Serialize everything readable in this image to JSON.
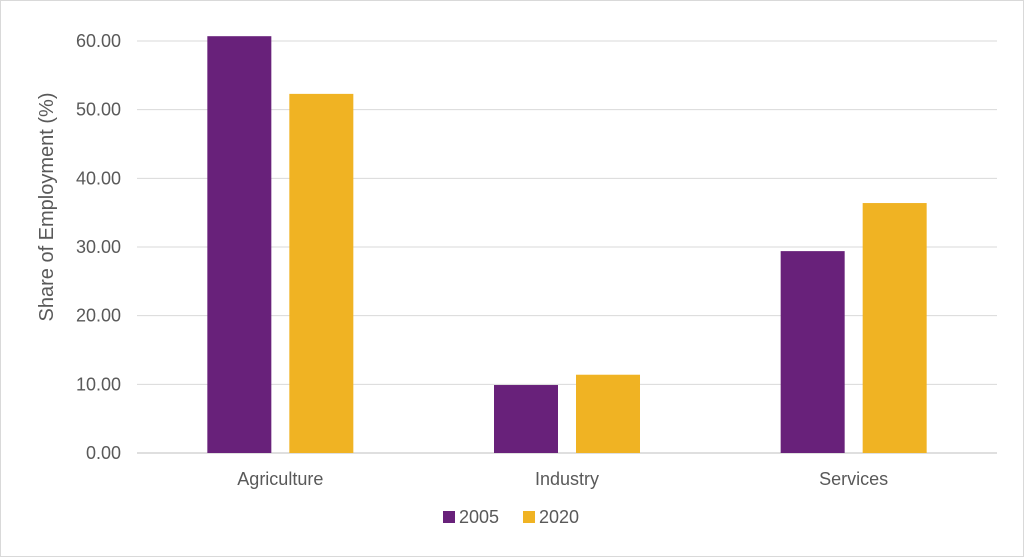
{
  "chart_data": {
    "type": "bar",
    "title": "",
    "xlabel": "",
    "ylabel": "Share of Employment (%)",
    "categories": [
      "Agriculture",
      "Industry",
      "Services"
    ],
    "series": [
      {
        "name": "2005",
        "color": "#68217a",
        "values": [
          60.7,
          9.9,
          29.4
        ]
      },
      {
        "name": "2020",
        "color": "#f0b323",
        "values": [
          52.3,
          11.4,
          36.4
        ]
      }
    ],
    "ylim": [
      0,
      60
    ],
    "yticks": [
      "0.00",
      "10.00",
      "20.00",
      "30.00",
      "40.00",
      "50.00",
      "60.00"
    ],
    "grid": true,
    "legend_position": "bottom"
  }
}
